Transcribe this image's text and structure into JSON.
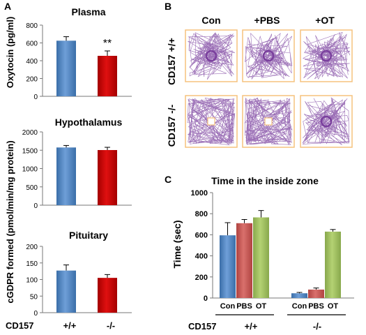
{
  "panel_labels": {
    "a": "A",
    "b": "B",
    "c": "C"
  },
  "colors": {
    "wt": "#4f81bd",
    "ko": "#c00000",
    "con": "#4f81bd",
    "pbs": "#c0504d",
    "ot": "#9bbb59",
    "arena_border": "#f5c27d",
    "track": "#7a3f9d"
  },
  "panel_a": {
    "ylabel_top": "Oxytocin (pg/ml)",
    "ylabel_shared": "cGDPR formed  (pmol/min/mg protein)",
    "genotype_label": "CD157",
    "group_labels": [
      "+/+",
      "-/-"
    ]
  },
  "panel_b": {
    "columns": [
      "Con",
      "+PBS",
      "+OT"
    ],
    "rows": [
      "CD157 +/+",
      "CD157 -/-"
    ]
  },
  "panel_c": {
    "genotype_label": "CD157",
    "group_labels": [
      "+/+",
      "-/-"
    ],
    "condition_labels": [
      "Con",
      "PBS",
      "OT"
    ]
  },
  "chart_data": [
    {
      "type": "bar",
      "title": "Plasma",
      "categories": [
        "+/+",
        "-/-"
      ],
      "values": [
        625,
        455
      ],
      "errors": [
        45,
        55
      ],
      "ylabel": "Oxytocin (pg/ml)",
      "ylim": [
        0,
        800
      ],
      "yticks": [
        0,
        200,
        400,
        600,
        800
      ],
      "annotations": [
        {
          "category": "-/-",
          "text": "**"
        }
      ]
    },
    {
      "type": "bar",
      "title": "Hypothalamus",
      "categories": [
        "+/+",
        "-/-"
      ],
      "values": [
        1575,
        1505
      ],
      "errors": [
        55,
        75
      ],
      "ylim": [
        0,
        2000
      ],
      "yticks": [
        0,
        500,
        1000,
        1500,
        2000
      ]
    },
    {
      "type": "bar",
      "title": "Pituitary",
      "categories": [
        "+/+",
        "-/-"
      ],
      "values": [
        127,
        105
      ],
      "errors": [
        17,
        10
      ],
      "ylim": [
        0,
        200
      ],
      "yticks": [
        0,
        50,
        100,
        150,
        200
      ]
    },
    {
      "type": "bar",
      "title": "Time in the inside zone",
      "ylabel": "Time (sec)",
      "categories": [
        "+/+",
        "-/-"
      ],
      "series": [
        {
          "name": "Con",
          "values": [
            595,
            45
          ],
          "errors": [
            120,
            8
          ]
        },
        {
          "name": "PBS",
          "values": [
            710,
            80
          ],
          "errors": [
            35,
            15
          ]
        },
        {
          "name": "OT",
          "values": [
            765,
            630
          ],
          "errors": [
            65,
            20
          ]
        }
      ],
      "ylim": [
        0,
        1000
      ],
      "yticks": [
        0,
        200,
        400,
        600,
        800,
        1000
      ]
    }
  ]
}
